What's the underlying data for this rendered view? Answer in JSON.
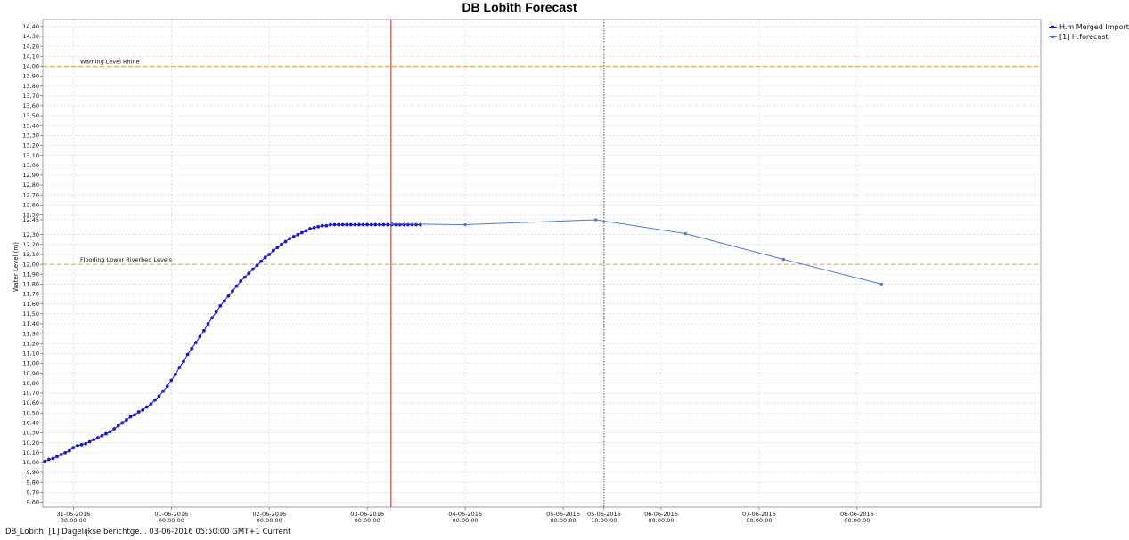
{
  "chart_data": {
    "type": "line",
    "title": "DB Lobith Forecast",
    "ylabel": "Water Level (m)",
    "ylim": [
      9.55,
      14.47
    ],
    "y_ticks": [
      "9,60",
      "9,70",
      "9,80",
      "9,90",
      "10,00",
      "10,10",
      "10,20",
      "10,30",
      "10,40",
      "10,50",
      "10,60",
      "10,70",
      "10,80",
      "10,90",
      "11,00",
      "11,10",
      "11,20",
      "11,30",
      "11,40",
      "11,50",
      "11,60",
      "11,70",
      "11,80",
      "11,90",
      "12,00",
      "12,10",
      "12,20",
      "12,30",
      "12,45",
      "12,50",
      "12,60",
      "12,70",
      "12,80",
      "12,90",
      "13,00",
      "13,10",
      "13,20",
      "13,30",
      "13,40",
      "13,50",
      "13,60",
      "13,70",
      "13,80",
      "13,90",
      "14,00",
      "14,10",
      "14,20",
      "14,30",
      "14,40"
    ],
    "highlight_y_tick": {
      "label": "12,45",
      "color": "#3355cc"
    },
    "x_ticks": [
      {
        "date": "31-05-2016",
        "time": "00:00:00"
      },
      {
        "date": "01-06-2016",
        "time": "00:00:00"
      },
      {
        "date": "02-06-2016",
        "time": "00:00:00"
      },
      {
        "date": "03-06-2016",
        "time": "00:00:00"
      },
      {
        "date": "04-06-2016",
        "time": "00:00:00"
      },
      {
        "date": "05-06-2016",
        "time": "00:00:00"
      },
      {
        "date": "05-06-2016",
        "time": "10:00:00",
        "highlight": true
      },
      {
        "date": "06-06-2016",
        "time": "00:00:00"
      },
      {
        "date": "07-06-2016",
        "time": "00:00:00"
      },
      {
        "date": "08-06-2016",
        "time": "00:00:00"
      }
    ],
    "grid": true,
    "threshold_lines": [
      {
        "label": "Warning Level Rhine",
        "value": 14.0,
        "color": "#e8a040"
      },
      {
        "label": "Flooding Lower Riverbed Levels",
        "value": 12.0,
        "color": "#e8a040"
      }
    ],
    "marker_lines": [
      {
        "at": "03-06-2016 05:50",
        "color": "#cc2222",
        "style": "solid"
      },
      {
        "at": "05-06-2016 10:00",
        "color": "#555555",
        "style": "dotted"
      }
    ],
    "x_hours_anchor": "31-05-2016 00:00",
    "series": [
      {
        "name": "H.m  Merged Import",
        "color": "#1a1acc",
        "x_hours_from_31_05": [
          -7,
          -6,
          -5,
          -4,
          -3,
          -2,
          -1,
          0,
          1,
          2,
          3,
          4,
          5,
          6,
          7,
          8,
          9,
          10,
          11,
          12,
          13,
          14,
          15,
          16,
          17,
          18,
          19,
          20,
          21,
          22,
          23,
          24,
          25,
          26,
          27,
          28,
          29,
          30,
          31,
          32,
          33,
          34,
          35,
          36,
          37,
          38,
          39,
          40,
          41,
          42,
          43,
          44,
          45,
          46,
          47,
          48,
          49,
          50,
          51,
          52,
          53,
          54,
          55,
          56,
          57,
          58,
          59,
          60,
          61,
          62,
          63,
          64,
          65,
          66,
          67,
          68,
          69,
          70,
          71,
          72,
          73,
          74,
          75,
          76,
          77,
          78,
          79,
          80,
          81,
          82,
          83,
          84,
          85
        ],
        "values": [
          10.01,
          10.03,
          10.04,
          10.06,
          10.08,
          10.1,
          10.12,
          10.15,
          10.17,
          10.18,
          10.19,
          10.21,
          10.23,
          10.25,
          10.27,
          10.29,
          10.31,
          10.34,
          10.37,
          10.4,
          10.43,
          10.46,
          10.48,
          10.51,
          10.53,
          10.56,
          10.59,
          10.63,
          10.67,
          10.72,
          10.77,
          10.83,
          10.89,
          10.96,
          11.02,
          11.09,
          11.15,
          11.21,
          11.27,
          11.33,
          11.4,
          11.46,
          11.52,
          11.58,
          11.63,
          11.68,
          11.73,
          11.78,
          11.83,
          11.87,
          11.91,
          11.95,
          11.99,
          12.03,
          12.07,
          12.1,
          12.14,
          12.17,
          12.2,
          12.23,
          12.26,
          12.28,
          12.3,
          12.32,
          12.34,
          12.36,
          12.37,
          12.38,
          12.39,
          12.39,
          12.4,
          12.4,
          12.4,
          12.4,
          12.4,
          12.4,
          12.4,
          12.4,
          12.4,
          12.4,
          12.4,
          12.4,
          12.4,
          12.4,
          12.4,
          12.4,
          12.4,
          12.4,
          12.4,
          12.4,
          12.4,
          12.4,
          12.4
        ]
      },
      {
        "name": "[1] H.forecast",
        "color": "#4a7ae0",
        "x_hours_from_31_05": [
          78,
          96,
          128,
          150,
          174,
          198
        ],
        "values": [
          12.41,
          12.4,
          12.45,
          12.31,
          12.05,
          11.8
        ]
      }
    ],
    "legend_position": "top-right"
  },
  "status_text": "DB_Lobith: [1] Dagelijkse berichtge... 03-06-2016 05:50:00 GMT+1 Current"
}
